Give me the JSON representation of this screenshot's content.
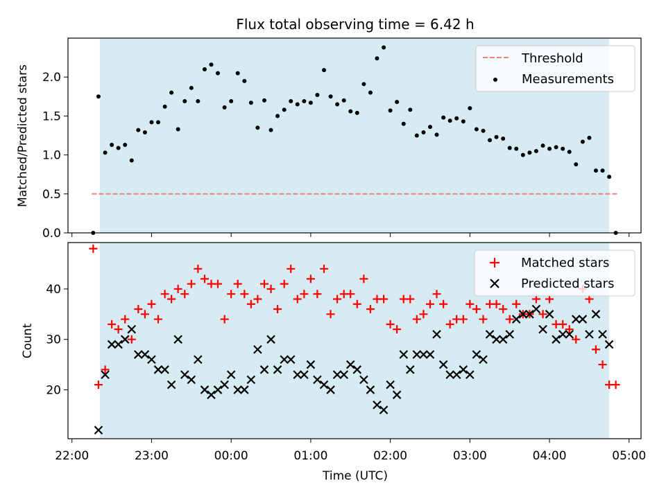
{
  "chart_data": [
    {
      "type": "scatter",
      "title": "Flux total observing time = 6.42 h",
      "xlabel": "",
      "ylabel": "Matched/Predicted stars",
      "ylim": [
        0,
        2.5
      ],
      "yticks": [
        "0.0",
        "0.5",
        "1.0",
        "1.5",
        "2.0"
      ],
      "ytick_values": [
        0,
        0.5,
        1.0,
        1.5,
        2.0
      ],
      "threshold": {
        "name": "Threshold",
        "value": 0.5,
        "x_start_hours": -1.75,
        "x_end_hours": 4.85,
        "color": "#f08080"
      },
      "observing_window_hours": [
        -1.65,
        4.75
      ],
      "shade_color": "#add8e6",
      "legend_position": "top-right",
      "series": [
        {
          "name": "Measurements",
          "color": "#000000",
          "marker": "dot",
          "x": [
            -1.733,
            -1.667,
            -1.583,
            -1.5,
            -1.417,
            -1.333,
            -1.25,
            -1.167,
            -1.083,
            -1,
            -0.917,
            -0.833,
            -0.75,
            -0.667,
            -0.583,
            -0.5,
            -0.417,
            -0.333,
            -0.25,
            -0.167,
            -0.083,
            0,
            0.083,
            0.167,
            0.25,
            0.333,
            0.417,
            0.5,
            0.583,
            0.667,
            0.75,
            0.833,
            0.917,
            1,
            1.083,
            1.167,
            1.25,
            1.333,
            1.417,
            1.5,
            1.583,
            1.667,
            1.75,
            1.833,
            1.917,
            2,
            2.083,
            2.167,
            2.25,
            2.333,
            2.417,
            2.5,
            2.583,
            2.667,
            2.75,
            2.833,
            2.917,
            3,
            3.083,
            3.167,
            3.25,
            3.333,
            3.417,
            3.5,
            3.583,
            3.667,
            3.75,
            3.833,
            3.917,
            4,
            4.083,
            4.167,
            4.25,
            4.333,
            4.417,
            4.5,
            4.583,
            4.667,
            4.75,
            4.833
          ],
          "y": [
            0,
            1.75,
            1.03,
            1.13,
            1.09,
            1.13,
            0.93,
            1.32,
            1.29,
            1.42,
            1.42,
            1.62,
            1.8,
            1.33,
            1.69,
            1.86,
            1.69,
            2.1,
            2.16,
            2.05,
            1.61,
            1.69,
            2.05,
            1.95,
            1.67,
            1.35,
            1.7,
            1.32,
            1.5,
            1.58,
            1.69,
            1.65,
            1.69,
            1.67,
            1.77,
            2.09,
            1.75,
            1.65,
            1.7,
            1.56,
            1.54,
            1.91,
            1.8,
            2.24,
            2.38,
            1.57,
            1.68,
            1.4,
            1.58,
            1.25,
            1.29,
            1.36,
            1.26,
            1.48,
            1.44,
            1.47,
            1.43,
            1.6,
            1.33,
            1.31,
            1.19,
            1.23,
            1.21,
            1.09,
            1.08,
            1,
            1.03,
            1.05,
            1.12,
            1.08,
            1.1,
            1.08,
            1.04,
            0.88,
            1.17,
            1.22,
            0.8,
            0.8,
            0.72,
            0
          ]
        }
      ]
    },
    {
      "type": "scatter",
      "title": "",
      "xlabel": "Time (UTC)",
      "ylabel": "Count",
      "ylim": [
        10.3,
        49.2
      ],
      "yticks": [
        "20",
        "30",
        "40"
      ],
      "ytick_values": [
        20,
        30,
        40
      ],
      "xlim_hours": [
        -2.05,
        5.15
      ],
      "xtick_values": [
        -2,
        -1,
        0,
        1,
        2,
        3,
        4,
        5
      ],
      "xticks": [
        "22:00",
        "23:00",
        "00:00",
        "01:00",
        "02:00",
        "03:00",
        "04:00",
        "05:00"
      ],
      "observing_window_hours": [
        -1.65,
        4.75
      ],
      "shade_color": "#add8e6",
      "legend_position": "top-right",
      "series": [
        {
          "name": "Matched stars",
          "color": "#ff0000",
          "marker": "plus",
          "x": [
            -1.733,
            -1.667,
            -1.583,
            -1.5,
            -1.417,
            -1.333,
            -1.25,
            -1.167,
            -1.083,
            -1,
            -0.917,
            -0.833,
            -0.75,
            -0.667,
            -0.583,
            -0.5,
            -0.417,
            -0.333,
            -0.25,
            -0.167,
            -0.083,
            0,
            0.083,
            0.167,
            0.25,
            0.333,
            0.417,
            0.5,
            0.583,
            0.667,
            0.75,
            0.833,
            0.917,
            1,
            1.083,
            1.167,
            1.25,
            1.333,
            1.417,
            1.5,
            1.583,
            1.667,
            1.75,
            1.833,
            1.917,
            2,
            2.083,
            2.167,
            2.25,
            2.333,
            2.417,
            2.5,
            2.583,
            2.667,
            2.75,
            2.833,
            2.917,
            3,
            3.083,
            3.167,
            3.25,
            3.333,
            3.417,
            3.5,
            3.583,
            3.667,
            3.75,
            3.833,
            3.917,
            4,
            4.083,
            4.167,
            4.25,
            4.333,
            4.417,
            4.5,
            4.583,
            4.667,
            4.75,
            4.833
          ],
          "y": [
            48,
            21,
            24,
            33,
            32,
            34,
            30,
            36,
            35,
            37,
            34,
            39,
            38,
            40,
            39,
            41,
            44,
            42,
            41,
            41,
            34,
            39,
            41,
            39,
            37,
            38,
            41,
            40,
            36,
            41,
            44,
            38,
            39,
            42,
            39,
            44,
            35,
            38,
            39,
            39,
            37,
            42,
            36,
            38,
            38,
            33,
            32,
            38,
            38,
            34,
            35,
            37,
            39,
            37,
            33,
            34,
            34,
            37,
            36,
            34,
            37,
            37,
            36,
            34,
            37,
            35,
            35,
            38,
            35,
            38,
            33,
            33,
            32,
            30,
            40,
            38,
            28,
            25,
            21,
            21
          ]
        },
        {
          "name": "Predicted stars",
          "color": "#000000",
          "marker": "x",
          "x": [
            -1.667,
            -1.583,
            -1.5,
            -1.417,
            -1.333,
            -1.25,
            -1.167,
            -1.083,
            -1,
            -0.917,
            -0.833,
            -0.75,
            -0.667,
            -0.583,
            -0.5,
            -0.417,
            -0.333,
            -0.25,
            -0.167,
            -0.083,
            0,
            0.083,
            0.167,
            0.25,
            0.333,
            0.417,
            0.5,
            0.583,
            0.667,
            0.75,
            0.833,
            0.917,
            1,
            1.083,
            1.167,
            1.25,
            1.333,
            1.417,
            1.5,
            1.583,
            1.667,
            1.75,
            1.833,
            1.917,
            2,
            2.083,
            2.167,
            2.25,
            2.333,
            2.417,
            2.5,
            2.583,
            2.667,
            2.75,
            2.833,
            2.917,
            3,
            3.083,
            3.167,
            3.25,
            3.333,
            3.417,
            3.5,
            3.583,
            3.667,
            3.75,
            3.833,
            3.917,
            4,
            4.083,
            4.167,
            4.25,
            4.333,
            4.417,
            4.5,
            4.583,
            4.667,
            4.75
          ],
          "y": [
            12,
            23,
            29,
            29,
            30,
            32,
            27,
            27,
            26,
            24,
            24,
            21,
            30,
            23,
            22,
            26,
            20,
            19,
            20,
            21,
            23,
            20,
            20,
            22,
            28,
            24,
            30,
            24,
            26,
            26,
            23,
            23,
            25,
            22,
            21,
            20,
            23,
            23,
            25,
            24,
            22,
            20,
            17,
            16,
            21,
            19,
            27,
            24,
            27,
            27,
            27,
            31,
            25,
            23,
            23,
            24,
            23,
            27,
            26,
            31,
            30,
            30,
            31,
            34,
            35,
            35,
            36,
            32,
            35,
            30,
            31,
            31,
            34,
            34,
            31,
            35,
            31,
            29
          ]
        }
      ]
    }
  ]
}
